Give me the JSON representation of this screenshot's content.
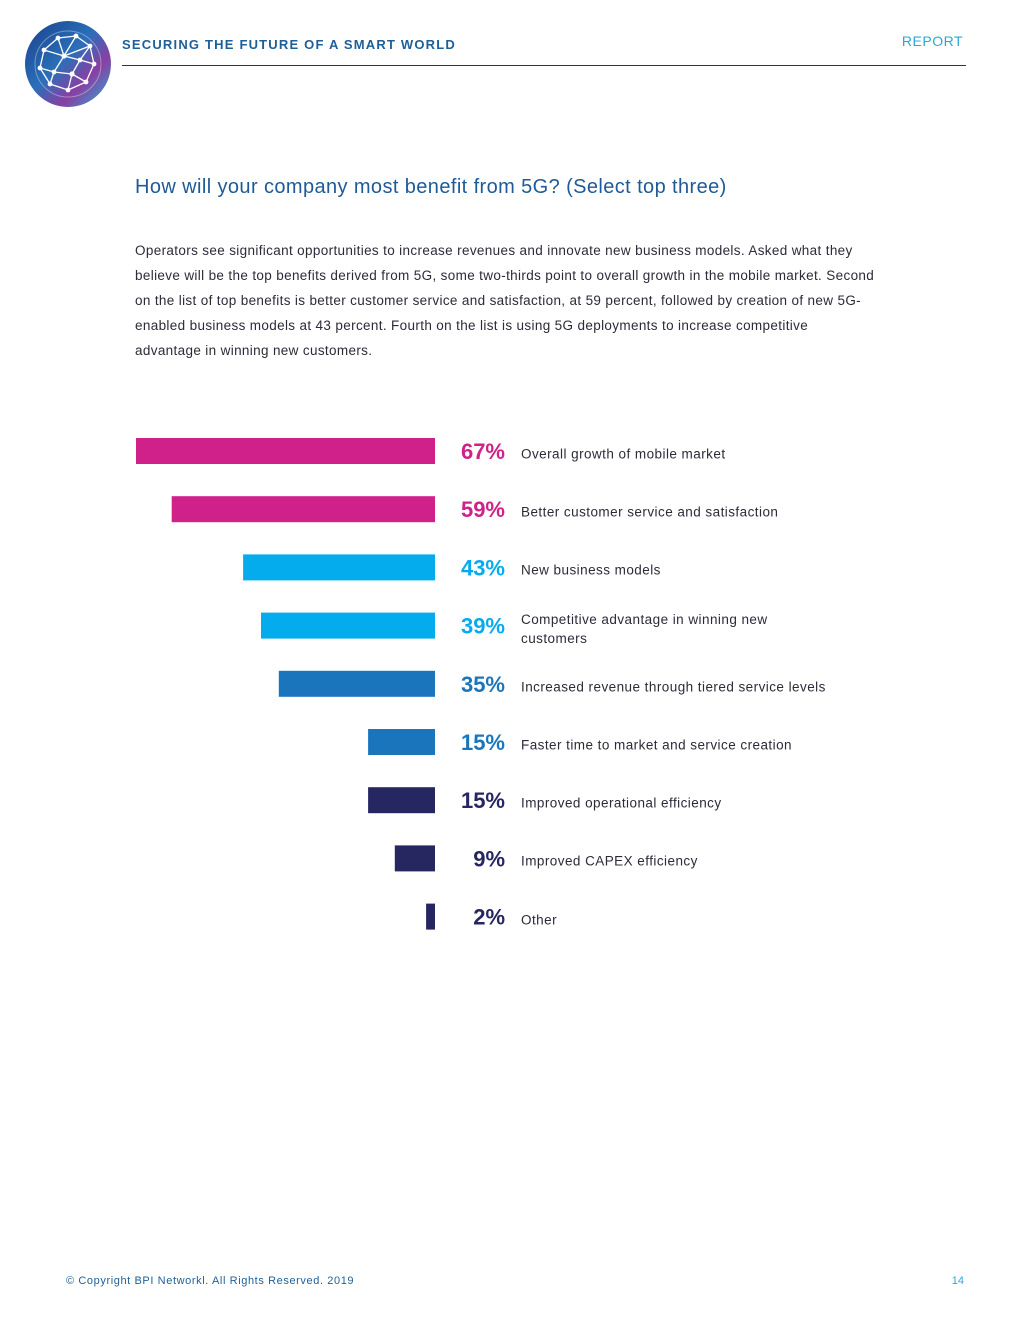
{
  "header": {
    "title": "SECURING THE FUTURE OF A SMART WORLD",
    "tag": "REPORT"
  },
  "question": "How will your company most benefit from 5G? (Select top three)",
  "intro": "Operators see significant opportunities to increase revenues and innovate new business models. Asked what they believe will be the top benefits derived from 5G, some two-thirds point to overall growth in the mobile market. Second on the list of top benefits is better customer service and satisfaction, at 59 percent, followed by creation of new 5G-enabled business models at 43 percent. Fourth on the list is using 5G deployments to increase competitive advantage in winning new customers.",
  "chart_data": {
    "type": "bar",
    "orientation": "horizontal",
    "title": "How will your company most benefit from 5G? (Select top three)",
    "xlim": [
      0,
      67
    ],
    "categories": [
      "Overall growth of mobile market",
      "Better customer service and satisfaction",
      "New business models",
      "Competitive advantage in winning new customers",
      "Increased revenue through tiered service levels",
      "Faster time to market and service creation",
      "Improved operational efficiency",
      "Improved CAPEX efficiency",
      "Other"
    ],
    "values": [
      67,
      59,
      43,
      39,
      35,
      15,
      15,
      9,
      2
    ],
    "value_labels": [
      "67%",
      "59%",
      "43%",
      "39%",
      "35%",
      "15%",
      "15%",
      "9%",
      "2%"
    ],
    "colors": [
      "#cf2189",
      "#cf2189",
      "#05aced",
      "#05aced",
      "#1b75bc",
      "#1b75bc",
      "#262661",
      "#262661",
      "#262661"
    ]
  },
  "footer": {
    "copyright": "© Copyright BPI Networkl. All Rights Reserved. 2019",
    "page": "14"
  }
}
